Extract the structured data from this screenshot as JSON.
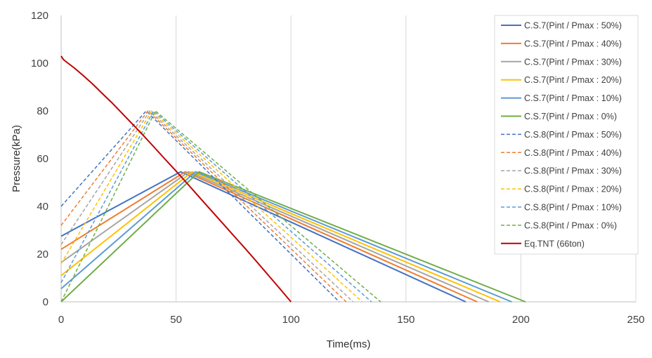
{
  "chart_data": {
    "type": "line",
    "xlabel": "Time(ms)",
    "ylabel": "Pressure(kPa)",
    "xlim": [
      0,
      250
    ],
    "ylim": [
      0,
      120
    ],
    "xticks": [
      0,
      50,
      100,
      150,
      200,
      250
    ],
    "yticks": [
      0,
      20,
      40,
      60,
      80,
      100,
      120
    ],
    "grid": "vertical",
    "legend_position": "right",
    "series": [
      {
        "name": "C.S.7(Pint / Pmax : 50%)",
        "color": "#4472C4",
        "dash": false,
        "x": [
          0,
          52,
          176
        ],
        "y": [
          27.5,
          54.5,
          0
        ]
      },
      {
        "name": "C.S.7(Pint / Pmax : 40%)",
        "color": "#ED7D31",
        "dash": false,
        "x": [
          0,
          54,
          181
        ],
        "y": [
          22,
          54.5,
          0
        ]
      },
      {
        "name": "C.S.7(Pint / Pmax : 30%)",
        "color": "#A5A5A5",
        "dash": false,
        "x": [
          0,
          55.5,
          186
        ],
        "y": [
          16.5,
          54.5,
          0
        ]
      },
      {
        "name": "C.S.7(Pint / Pmax : 20%)",
        "color": "#FFC000",
        "dash": false,
        "x": [
          0,
          57,
          191
        ],
        "y": [
          11,
          54.5,
          0
        ]
      },
      {
        "name": "C.S.7(Pint / Pmax : 10%)",
        "color": "#5B9BD5",
        "dash": false,
        "x": [
          0,
          58.5,
          196
        ],
        "y": [
          5.5,
          54.5,
          0
        ]
      },
      {
        "name": "C.S.7(Pint / Pmax : 0%)",
        "color": "#70AD47",
        "dash": false,
        "x": [
          0,
          60,
          202
        ],
        "y": [
          0,
          54.5,
          0
        ]
      },
      {
        "name": "C.S.8(Pint / Pmax : 50%)",
        "color": "#4472C4",
        "dash": true,
        "x": [
          0,
          37,
          121
        ],
        "y": [
          40,
          80,
          0
        ]
      },
      {
        "name": "C.S.8(Pint / Pmax : 40%)",
        "color": "#ED7D31",
        "dash": true,
        "x": [
          0,
          37.8,
          124
        ],
        "y": [
          32,
          80,
          0
        ]
      },
      {
        "name": "C.S.8(Pint / Pmax : 30%)",
        "color": "#A5A5A5",
        "dash": true,
        "x": [
          0,
          38.6,
          127
        ],
        "y": [
          24,
          80,
          0
        ]
      },
      {
        "name": "C.S.8(Pint / Pmax : 20%)",
        "color": "#FFC000",
        "dash": true,
        "x": [
          0,
          39.4,
          131
        ],
        "y": [
          16,
          80,
          0
        ]
      },
      {
        "name": "C.S.8(Pint / Pmax : 10%)",
        "color": "#5B9BD5",
        "dash": true,
        "x": [
          0,
          40.2,
          135
        ],
        "y": [
          8,
          80,
          0
        ]
      },
      {
        "name": "C.S.8(Pint / Pmax : 0%)",
        "color": "#70AD47",
        "dash": true,
        "x": [
          0,
          41,
          139
        ],
        "y": [
          0,
          80,
          0
        ]
      },
      {
        "name": "Eq.TNT (66ton)",
        "color": "#C00000",
        "dash": false,
        "x": [
          0,
          1,
          3,
          6,
          10,
          14,
          18,
          22,
          26,
          30,
          35,
          40,
          45,
          50,
          55,
          60,
          65,
          70,
          75,
          80,
          85,
          90,
          95,
          100
        ],
        "y": [
          103,
          101.5,
          100,
          97.8,
          94.5,
          91,
          87.2,
          83.5,
          79.5,
          75.5,
          70.5,
          65.3,
          60,
          54.8,
          49.4,
          44,
          38.6,
          33.2,
          27.8,
          22.4,
          16.9,
          11.3,
          5.7,
          0
        ]
      }
    ]
  }
}
